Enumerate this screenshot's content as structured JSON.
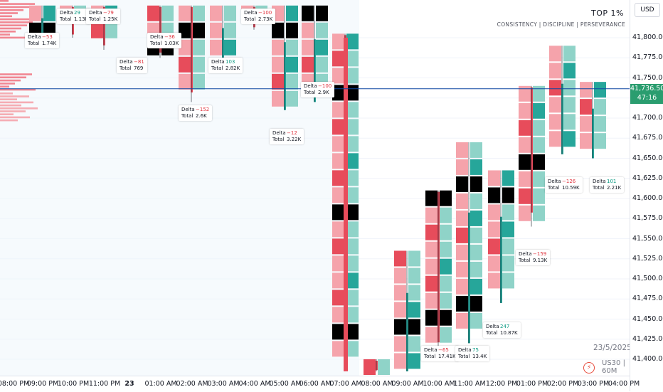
{
  "header": {
    "currency": "USD",
    "brand_title": "TOP 1%",
    "brand_tagline": "CONSISTENCY  |  DISCIPLINE  |  PERSEVERANCE"
  },
  "watermark": {
    "date": "23/5/2025",
    "symbol_prefix": "US30",
    "separator": "|",
    "timeframe": "60M"
  },
  "current_price": {
    "price": "41,736.50",
    "countdown": "47:16",
    "color": "#2a9d6f"
  },
  "colors": {
    "bid_heavy": "#e74c5b",
    "ask_heavy": "#26a69a",
    "bid_light": "#f5a3ab",
    "ask_light": "#8fd3c8",
    "imbalance_dark": "#000000",
    "poc_line": "#0d47a1",
    "volume_profile": "#ef5f6d"
  },
  "chart_data": {
    "type": "footprint",
    "ylim": [
      41385,
      41840
    ],
    "price_ticks": [
      "41,800.00",
      "41,775.00",
      "41,750.00",
      "41,725.00",
      "41,700.00",
      "41,675.00",
      "41,650.00",
      "41,625.00",
      "41,600.00",
      "41,575.00",
      "41,550.00",
      "41,525.00",
      "41,500.00",
      "41,475.00",
      "41,450.00",
      "41,425.00",
      "41,400.00"
    ],
    "price_tick_values": [
      41800,
      41775,
      41750,
      41725,
      41700,
      41675,
      41650,
      41625,
      41600,
      41575,
      41550,
      41525,
      41500,
      41475,
      41450,
      41425,
      41400
    ],
    "time_labels": [
      "08:00 PM",
      "09:00 PM",
      "10:00 PM",
      "11:00 PM",
      "23",
      "01:00 AM",
      "02:00 AM",
      "03:00 AM",
      "04:00 AM",
      "05:00 AM",
      "06:00 AM",
      "07:00 AM",
      "08:00 AM",
      "09:00 AM",
      "10:00 AM",
      "11:00 AM",
      "12:00 PM",
      "01:00 PM",
      "02:00 PM",
      "03:00 PM",
      "04:00 PM"
    ],
    "poc_price": 41736.5,
    "candles": [
      {
        "time": "09:00 PM",
        "low": 41795,
        "high": 41840,
        "dir": "up"
      },
      {
        "time": "10:00 PM",
        "low": 41800,
        "high": 41840,
        "dir": "down"
      },
      {
        "time": "11:00 PM",
        "low": 41785,
        "high": 41840,
        "dir": "down"
      },
      {
        "time": "01:00 AM",
        "low": 41775,
        "high": 41840,
        "dir": "down"
      },
      {
        "time": "02:00 AM",
        "low": 41720,
        "high": 41840,
        "dir": "down"
      },
      {
        "time": "03:00 AM",
        "low": 41760,
        "high": 41840,
        "dir": "up"
      },
      {
        "time": "04:00 AM",
        "low": 41810,
        "high": 41840,
        "dir": "down"
      },
      {
        "time": "05:00 AM",
        "low": 41710,
        "high": 41840,
        "dir": "up"
      },
      {
        "time": "06:00 AM",
        "low": 41720,
        "high": 41840,
        "dir": "up"
      },
      {
        "time": "07:00 AM",
        "low": 41385,
        "high": 41805,
        "dir": "down"
      },
      {
        "time": "08:00 AM",
        "low": 41385,
        "high": 41400,
        "dir": "down"
      },
      {
        "time": "09:00 AM",
        "low": 41385,
        "high": 41535,
        "dir": "up"
      },
      {
        "time": "10:00 AM",
        "low": 41400,
        "high": 41610,
        "dir": "down"
      },
      {
        "time": "11:00 AM",
        "low": 41420,
        "high": 41670,
        "dir": "up"
      },
      {
        "time": "12:00 PM",
        "low": 41470,
        "high": 41635,
        "dir": "up"
      },
      {
        "time": "01:00 PM",
        "low": 41565,
        "high": 41740,
        "dir": "down"
      },
      {
        "time": "02:00 PM",
        "low": 41655,
        "high": 41790,
        "dir": "up"
      },
      {
        "time": "03:00 PM",
        "low": 41650,
        "high": 41745,
        "dir": "up"
      }
    ],
    "delta_boxes": [
      {
        "delta": "29",
        "total": "1.13K"
      },
      {
        "delta": "−79",
        "total": "1.25K"
      },
      {
        "delta": "−53",
        "total": "1.74K"
      },
      {
        "delta": "−36",
        "total": "1.03K"
      },
      {
        "delta": "−81",
        "total": "769"
      },
      {
        "delta": "103",
        "total": "2.82K"
      },
      {
        "delta": "−152",
        "total": "2.6K"
      },
      {
        "delta": "−100",
        "total": "2.73K"
      },
      {
        "delta": "−100",
        "total": "2.9K"
      },
      {
        "delta": "−12",
        "total": "3.22K"
      },
      {
        "delta": "−65",
        "total": "17.41K"
      },
      {
        "delta": "75",
        "total": "13.4K"
      },
      {
        "delta": "247",
        "total": "10.87K"
      },
      {
        "delta": "−159",
        "total": "9.13K"
      },
      {
        "delta": "−126",
        "total": "10.59K"
      },
      {
        "delta": "101",
        "total": "2.21K"
      }
    ],
    "delta_label": "Delta",
    "total_label": "Total"
  }
}
